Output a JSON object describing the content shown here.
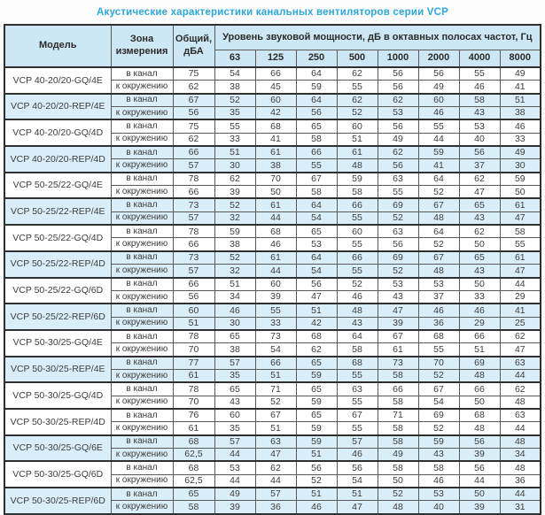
{
  "page": {
    "title": "Акустические характеристики канальных вентиляторов  серии VCP"
  },
  "table": {
    "colors": {
      "title_blue": "#29a9e0",
      "header_bg": "#cde7f4",
      "shaded_row_bg": "#daeefa"
    },
    "headers": {
      "model": "Модель",
      "zone": "Зона измерения",
      "total": "Общий, дБА",
      "spl_group": "Уровень звуковой мощности, дБ в октавных полосах частот, Гц",
      "frequencies": [
        "63",
        "125",
        "250",
        "500",
        "1000",
        "2000",
        "4000",
        "8000"
      ]
    },
    "zone_labels": {
      "duct": "в канал",
      "ambient": "к окружению"
    },
    "models": [
      {
        "name": "VCP 40-20/20-GQ/4E",
        "shaded": false,
        "rows": [
          {
            "zone": "в канал",
            "total": "75",
            "values": [
              54,
              66,
              64,
              62,
              56,
              56,
              55,
              49
            ]
          },
          {
            "zone": "к окружению",
            "total": "62",
            "values": [
              38,
              45,
              59,
              55,
              56,
              49,
              46,
              41
            ]
          }
        ]
      },
      {
        "name": "VCP 40-20/20-REP/4E",
        "shaded": true,
        "rows": [
          {
            "zone": "в канал",
            "total": "67",
            "values": [
              52,
              60,
              64,
              62,
              62,
              60,
              58,
              51
            ]
          },
          {
            "zone": "к окружению",
            "total": "56",
            "values": [
              35,
              42,
              56,
              52,
              53,
              46,
              43,
              38
            ]
          }
        ]
      },
      {
        "name": "VCP 40-20/20-GQ/4D",
        "shaded": false,
        "rows": [
          {
            "zone": "в канал",
            "total": "75",
            "values": [
              55,
              68,
              65,
              60,
              56,
              55,
              53,
              46
            ]
          },
          {
            "zone": "к окружению",
            "total": "62",
            "values": [
              33,
              41,
              58,
              51,
              49,
              44,
              40,
              33
            ]
          }
        ]
      },
      {
        "name": "VCP 40-20/20-REP/4D",
        "shaded": true,
        "rows": [
          {
            "zone": "в канал",
            "total": "66",
            "values": [
              51,
              61,
              66,
              61,
              62,
              59,
              56,
              49
            ]
          },
          {
            "zone": "к окружению",
            "total": "57",
            "values": [
              30,
              38,
              55,
              48,
              56,
              41,
              37,
              30
            ]
          }
        ]
      },
      {
        "name": "VCP 50-25/22-GQ/4E",
        "shaded": false,
        "rows": [
          {
            "zone": "в канал",
            "total": "78",
            "values": [
              62,
              70,
              67,
              59,
              63,
              64,
              62,
              59
            ]
          },
          {
            "zone": "к окружению",
            "total": "66",
            "values": [
              39,
              50,
              58,
              58,
              55,
              52,
              47,
              50
            ]
          }
        ]
      },
      {
        "name": "VCP 50-25/22-REP/4E",
        "shaded": true,
        "rows": [
          {
            "zone": "в канал",
            "total": "73",
            "values": [
              52,
              61,
              64,
              66,
              69,
              67,
              65,
              61
            ]
          },
          {
            "zone": "к окружению",
            "total": "57",
            "values": [
              32,
              44,
              54,
              55,
              52,
              48,
              43,
              47
            ]
          }
        ]
      },
      {
        "name": "VCP 50-25/22-GQ/4D",
        "shaded": false,
        "rows": [
          {
            "zone": "в канал",
            "total": "78",
            "values": [
              59,
              68,
              65,
              60,
              63,
              64,
              62,
              58
            ]
          },
          {
            "zone": "к окружению",
            "total": "66",
            "values": [
              38,
              46,
              53,
              55,
              56,
              52,
              50,
              55
            ]
          }
        ]
      },
      {
        "name": "VCP 50-25/22-REP/4D",
        "shaded": true,
        "rows": [
          {
            "zone": "в канал",
            "total": "73",
            "values": [
              52,
              61,
              64,
              66,
              69,
              67,
              65,
              61
            ]
          },
          {
            "zone": "к окружению",
            "total": "57",
            "values": [
              32,
              44,
              54,
              55,
              52,
              48,
              43,
              47
            ]
          }
        ]
      },
      {
        "name": "VCP 50-25/22-GQ/6D",
        "shaded": false,
        "rows": [
          {
            "zone": "в канал",
            "total": "66",
            "values": [
              51,
              60,
              56,
              52,
              53,
              53,
              50,
              44
            ]
          },
          {
            "zone": "к окружению",
            "total": "56",
            "values": [
              34,
              39,
              47,
              46,
              43,
              37,
              33,
              29
            ]
          }
        ]
      },
      {
        "name": "VCP 50-25/22-REP/6D",
        "shaded": true,
        "rows": [
          {
            "zone": "в канал",
            "total": "60",
            "values": [
              46,
              55,
              51,
              48,
              47,
              46,
              46,
              41
            ]
          },
          {
            "zone": "к окружению",
            "total": "51",
            "values": [
              30,
              33,
              42,
              43,
              39,
              36,
              29,
              25
            ]
          }
        ]
      },
      {
        "name": "VCP 50-30/25-GQ/4E",
        "shaded": false,
        "rows": [
          {
            "zone": "в канал",
            "total": "78",
            "values": [
              65,
              73,
              68,
              64,
              67,
              68,
              66,
              62
            ]
          },
          {
            "zone": "к окружению",
            "total": "70",
            "values": [
              38,
              54,
              62,
              58,
              61,
              55,
              51,
              47
            ]
          }
        ]
      },
      {
        "name": "VCP 50-30/25-REP/4E",
        "shaded": true,
        "rows": [
          {
            "zone": "в канал",
            "total": "77",
            "values": [
              57,
              66,
              65,
              68,
              73,
              70,
              69,
              63
            ]
          },
          {
            "zone": "к окружению",
            "total": "61",
            "values": [
              35,
              51,
              59,
              55,
              58,
              52,
              48,
              44
            ]
          }
        ]
      },
      {
        "name": "VCP 50-30/25-GQ/4D",
        "shaded": false,
        "rows": [
          {
            "zone": "в канал",
            "total": "78",
            "values": [
              65,
              71,
              65,
              63,
              66,
              67,
              66,
              62
            ]
          },
          {
            "zone": "к окружению",
            "total": "70",
            "values": [
              43,
              52,
              59,
              55,
              58,
              54,
              50,
              48
            ]
          }
        ]
      },
      {
        "name": "VCP 50-30/25-REP/4D",
        "shaded": false,
        "rows": [
          {
            "zone": "в канал",
            "total": "76",
            "values": [
              60,
              67,
              65,
              67,
              71,
              69,
              68,
              63
            ]
          },
          {
            "zone": "к окружению",
            "total": "61",
            "values": [
              35,
              51,
              59,
              55,
              58,
              52,
              48,
              44
            ]
          }
        ]
      },
      {
        "name": "VCP 50-30/25-GQ/6E",
        "shaded": true,
        "rows": [
          {
            "zone": "в канал",
            "total": "68",
            "values": [
              57,
              63,
              59,
              57,
              58,
              59,
              56,
              48
            ]
          },
          {
            "zone": "к окружению",
            "total": "62,5",
            "values": [
              44,
              47,
              51,
              46,
              49,
              43,
              39,
              34
            ]
          }
        ]
      },
      {
        "name": "VCP 50-30/25-GQ/6D",
        "shaded": false,
        "rows": [
          {
            "zone": "в канал",
            "total": "68",
            "values": [
              53,
              62,
              56,
              56,
              58,
              58,
              56,
              48
            ]
          },
          {
            "zone": "к окружению",
            "total": "62,5",
            "values": [
              44,
              44,
              52,
              54,
              50,
              46,
              44,
              36
            ]
          }
        ]
      },
      {
        "name": "VCP 50-30/25-REP/6D",
        "shaded": true,
        "rows": [
          {
            "zone": "в канал",
            "total": "65",
            "values": [
              49,
              57,
              51,
              51,
              52,
              53,
              50,
              44
            ]
          },
          {
            "zone": "к окружению",
            "total": "58",
            "values": [
              39,
              36,
              46,
              47,
              48,
              40,
              39,
              31
            ]
          }
        ]
      }
    ]
  }
}
